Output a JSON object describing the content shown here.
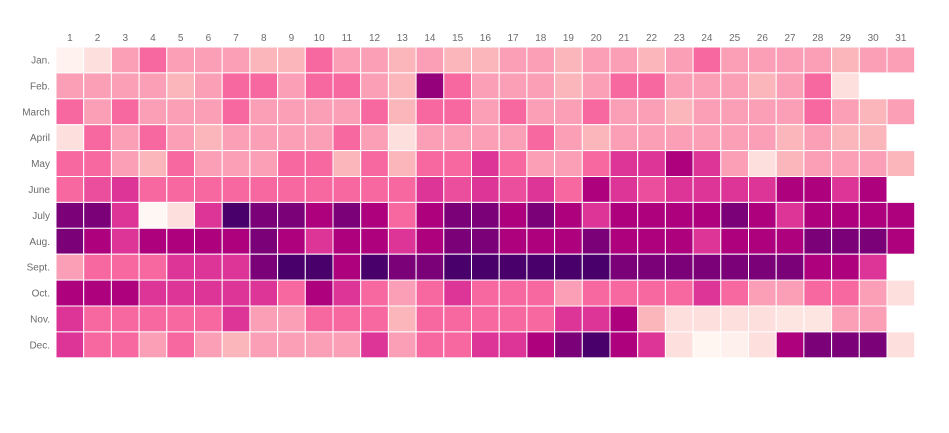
{
  "chart_data": {
    "type": "heatmap",
    "title": "",
    "xlabel": "",
    "ylabel": "",
    "x": [
      "1",
      "2",
      "3",
      "4",
      "5",
      "6",
      "7",
      "8",
      "9",
      "10",
      "11",
      "12",
      "13",
      "14",
      "15",
      "16",
      "17",
      "18",
      "19",
      "20",
      "21",
      "22",
      "23",
      "24",
      "25",
      "26",
      "27",
      "28",
      "29",
      "30",
      "31"
    ],
    "y": [
      "Jan.",
      "Feb.",
      "March",
      "April",
      "May",
      "June",
      "July",
      "Aug.",
      "Sept.",
      "Oct.",
      "Nov.",
      "Dec."
    ],
    "x_axis_position": "top",
    "colorscale": [
      "#fff7f3",
      "#fde0dd",
      "#fcc5c0",
      "#fa9fb5",
      "#f768a1",
      "#dd3497",
      "#ae017e",
      "#7a0177",
      "#49006a"
    ],
    "value_range": [
      0,
      8
    ],
    "grid": false,
    "legend": "none",
    "z": [
      [
        0.2,
        1.0,
        3.0,
        4.0,
        3.0,
        3.0,
        3.0,
        2.4,
        2.4,
        4.0,
        3.0,
        3.0,
        2.4,
        3.0,
        2.4,
        2.4,
        3.0,
        3.0,
        2.4,
        3.0,
        3.0,
        2.4,
        3.0,
        4.0,
        3.0,
        3.0,
        3.0,
        3.0,
        2.4,
        3.0,
        3.0
      ],
      [
        3.0,
        3.0,
        3.0,
        3.0,
        2.4,
        3.0,
        4.0,
        4.0,
        3.0,
        4.0,
        4.0,
        3.0,
        2.4,
        6.5,
        4.0,
        3.0,
        3.0,
        3.0,
        2.4,
        3.0,
        4.0,
        4.0,
        3.0,
        3.0,
        3.0,
        2.4,
        3.0,
        4.0,
        1.0,
        null,
        null
      ],
      [
        4.0,
        3.0,
        4.0,
        3.0,
        3.0,
        3.0,
        4.0,
        3.0,
        3.0,
        3.0,
        3.0,
        4.0,
        2.4,
        4.0,
        4.0,
        3.0,
        4.0,
        3.0,
        3.0,
        4.0,
        3.0,
        3.0,
        2.4,
        3.0,
        3.0,
        3.0,
        3.0,
        4.0,
        3.0,
        2.4,
        3.0
      ],
      [
        1.0,
        4.0,
        3.0,
        4.0,
        3.0,
        2.4,
        3.0,
        3.0,
        3.0,
        3.0,
        4.0,
        3.0,
        1.0,
        3.0,
        3.0,
        3.0,
        3.0,
        4.0,
        3.0,
        2.4,
        3.0,
        3.0,
        3.0,
        3.0,
        3.0,
        3.0,
        2.4,
        3.0,
        2.4,
        2.4,
        null
      ],
      [
        4.0,
        4.0,
        3.0,
        2.4,
        4.0,
        3.0,
        3.0,
        3.0,
        4.0,
        4.0,
        2.4,
        4.0,
        2.4,
        4.0,
        4.0,
        5.0,
        4.0,
        3.0,
        3.0,
        4.0,
        5.0,
        5.0,
        6.0,
        5.0,
        3.0,
        1.0,
        2.4,
        3.0,
        3.0,
        3.0,
        2.4
      ],
      [
        4.0,
        4.5,
        5.0,
        4.0,
        4.0,
        4.0,
        4.0,
        4.0,
        4.0,
        4.0,
        4.0,
        4.0,
        4.0,
        5.0,
        4.5,
        5.0,
        4.5,
        5.0,
        4.0,
        6.0,
        5.0,
        4.5,
        5.0,
        5.0,
        5.0,
        5.0,
        6.0,
        6.0,
        5.0,
        6.0,
        null
      ],
      [
        7.0,
        7.0,
        5.0,
        0.0,
        1.0,
        5.0,
        8.0,
        7.0,
        7.0,
        6.0,
        7.0,
        6.0,
        4.0,
        6.0,
        7.0,
        7.0,
        6.0,
        7.0,
        6.0,
        5.0,
        6.0,
        6.0,
        6.0,
        6.0,
        7.0,
        6.0,
        5.0,
        6.0,
        6.0,
        6.0,
        6.0
      ],
      [
        7.0,
        6.0,
        5.0,
        6.0,
        6.0,
        6.0,
        6.0,
        7.0,
        6.0,
        5.0,
        6.0,
        6.0,
        5.0,
        6.0,
        7.0,
        7.0,
        6.0,
        6.0,
        6.0,
        7.0,
        6.0,
        6.0,
        6.0,
        5.0,
        6.0,
        6.0,
        6.0,
        7.0,
        7.0,
        7.0,
        6.0
      ],
      [
        3.0,
        4.0,
        4.0,
        4.0,
        5.0,
        5.0,
        5.0,
        7.0,
        8.0,
        8.0,
        6.0,
        8.0,
        7.0,
        7.0,
        8.0,
        8.0,
        8.0,
        8.0,
        8.0,
        8.0,
        7.0,
        7.0,
        7.0,
        7.0,
        7.0,
        7.0,
        7.0,
        6.0,
        6.0,
        5.0,
        null
      ],
      [
        6.0,
        6.0,
        6.0,
        5.0,
        5.0,
        5.0,
        5.0,
        5.0,
        4.0,
        6.0,
        5.0,
        4.0,
        3.0,
        4.0,
        5.0,
        4.0,
        4.0,
        4.0,
        3.0,
        4.0,
        4.0,
        4.0,
        4.0,
        5.0,
        4.0,
        3.0,
        3.0,
        4.0,
        4.0,
        3.0,
        1.0
      ],
      [
        5.0,
        4.0,
        4.0,
        4.0,
        4.0,
        4.0,
        5.0,
        3.0,
        3.0,
        4.0,
        4.0,
        4.0,
        2.4,
        4.0,
        4.0,
        4.0,
        4.0,
        4.0,
        5.0,
        5.0,
        6.0,
        2.4,
        1.0,
        1.0,
        1.0,
        1.0,
        0.8,
        0.8,
        3.0,
        3.0,
        null
      ],
      [
        5.0,
        4.0,
        4.0,
        3.0,
        4.0,
        3.0,
        2.4,
        3.0,
        3.0,
        3.0,
        3.0,
        5.0,
        3.0,
        4.0,
        4.0,
        5.0,
        5.0,
        6.0,
        7.0,
        8.0,
        6.0,
        5.0,
        1.0,
        0.1,
        0.3,
        1.0,
        6.0,
        7.0,
        7.0,
        7.0,
        1.0
      ]
    ]
  }
}
